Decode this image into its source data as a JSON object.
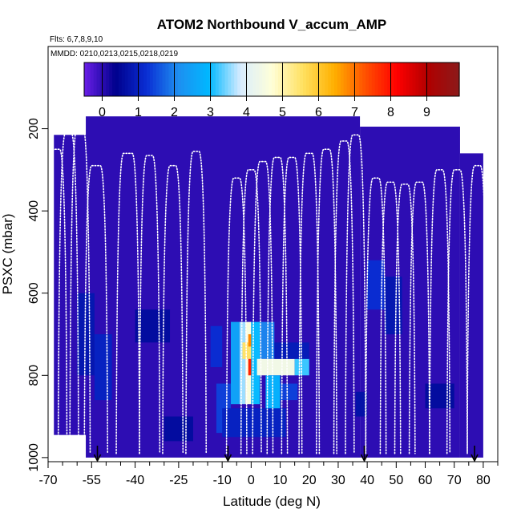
{
  "chart_data": {
    "type": "heatmap",
    "title": "ATOM2 Northbound V_accum_AMP",
    "subtitle_flights": "Flts: 6,7,8,9,10",
    "subtitle_dates": "MMDD: 0210,0213,0215,0218,0219",
    "xlabel": "Latitude (deg N)",
    "ylabel": "PSXC (mbar)",
    "xlim": [
      -70,
      85
    ],
    "ylim": [
      1010,
      0
    ],
    "x_ticks": [
      -70,
      -55,
      -40,
      -25,
      -10,
      0,
      10,
      20,
      30,
      40,
      50,
      60,
      70,
      80
    ],
    "y_ticks": [
      200,
      400,
      600,
      800,
      1000
    ],
    "colorbar": {
      "range": [
        -0.5,
        9.9
      ],
      "ticks": [
        0,
        1,
        2,
        3,
        4,
        5,
        6,
        7,
        8,
        9
      ],
      "palette": [
        "#6a1ee8",
        "#00008c",
        "#0a2ed4",
        "#1e8ef0",
        "#00b8ff",
        "#d8ecff",
        "#ffffd8",
        "#ffe060",
        "#ffb000",
        "#ff5000",
        "#ff0000",
        "#b00000",
        "#8b1a1a"
      ]
    },
    "background_value": 0,
    "data_region": [
      {
        "lat_min": -68,
        "lat_max": -57,
        "p_top": 215,
        "p_bottom": 945
      },
      {
        "lat_min": -57,
        "lat_max": 37.5,
        "p_top": 170,
        "p_bottom": 1000
      },
      {
        "lat_min": 37.5,
        "lat_max": 72,
        "p_top": 195,
        "p_bottom": 1000
      },
      {
        "lat_min": 72,
        "lat_max": 80,
        "p_top": 260,
        "p_bottom": 1000
      }
    ],
    "cells": [
      {
        "lat": [
          -60,
          -54
        ],
        "p": [
          600,
          800
        ],
        "v": 0.8
      },
      {
        "lat": [
          -54,
          -48
        ],
        "p": [
          700,
          860
        ],
        "v": 1.0
      },
      {
        "lat": [
          -40,
          -28
        ],
        "p": [
          640,
          720
        ],
        "v": 0.6
      },
      {
        "lat": [
          -12,
          -7
        ],
        "p": [
          820,
          940
        ],
        "v": 1.4
      },
      {
        "lat": [
          -14,
          -10
        ],
        "p": [
          680,
          780
        ],
        "v": 1.2
      },
      {
        "lat": [
          -7,
          -4
        ],
        "p": [
          670,
          870
        ],
        "v": 2.5
      },
      {
        "lat": [
          -4,
          -2
        ],
        "p": [
          670,
          870
        ],
        "v": 3.6
      },
      {
        "lat": [
          -2,
          0
        ],
        "p": [
          670,
          870
        ],
        "v": 4.6
      },
      {
        "lat": [
          -3,
          1
        ],
        "p": [
          720,
          760
        ],
        "v": 5.5
      },
      {
        "lat": [
          -1,
          0.5
        ],
        "p": [
          760,
          800
        ],
        "v": 7.8
      },
      {
        "lat": [
          -1,
          0.5
        ],
        "p": [
          700,
          730
        ],
        "v": 6.8
      },
      {
        "lat": [
          0,
          3
        ],
        "p": [
          670,
          870
        ],
        "v": 3.0
      },
      {
        "lat": [
          3,
          8
        ],
        "p": [
          670,
          760
        ],
        "v": 2.0
      },
      {
        "lat": [
          2,
          15
        ],
        "p": [
          760,
          800
        ],
        "v": 4.4
      },
      {
        "lat": [
          15,
          20
        ],
        "p": [
          760,
          800
        ],
        "v": 3.2
      },
      {
        "lat": [
          5,
          10
        ],
        "p": [
          800,
          900
        ],
        "v": 2.8
      },
      {
        "lat": [
          10,
          16
        ],
        "p": [
          820,
          860
        ],
        "v": 1.4
      },
      {
        "lat": [
          8,
          20
        ],
        "p": [
          720,
          760
        ],
        "v": 0.9
      },
      {
        "lat": [
          -10,
          12
        ],
        "p": [
          880,
          950
        ],
        "v": 1.0
      },
      {
        "lat": [
          40,
          46
        ],
        "p": [
          520,
          640
        ],
        "v": 1.2
      },
      {
        "lat": [
          46,
          52
        ],
        "p": [
          560,
          700
        ],
        "v": 0.8
      },
      {
        "lat": [
          36,
          40
        ],
        "p": [
          840,
          900
        ],
        "v": 0.7
      },
      {
        "lat": [
          -30,
          -20
        ],
        "p": [
          900,
          960
        ],
        "v": 0.6
      },
      {
        "lat": [
          60,
          70
        ],
        "p": [
          820,
          880
        ],
        "v": 0.6
      }
    ],
    "arrow_markers_lat": [
      -53,
      -8,
      39,
      77
    ]
  }
}
